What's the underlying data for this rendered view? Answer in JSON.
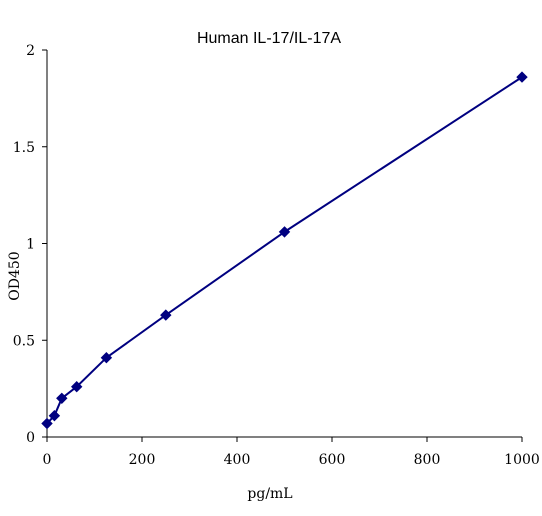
{
  "chart_data": {
    "type": "line",
    "title": "Human IL-17/IL-17A",
    "xlabel": "pg/mL",
    "ylabel": "OD450",
    "xlim": [
      0,
      1000
    ],
    "ylim": [
      0,
      2
    ],
    "x_ticks": [
      "0",
      "200",
      "400",
      "600",
      "800",
      "1000"
    ],
    "y_ticks": [
      "0",
      "0.5",
      "1",
      "1.5",
      "2"
    ],
    "grid": false,
    "legend": "none",
    "marker": "diamond",
    "line_color": "#000080",
    "series": [
      {
        "x": [
          0,
          15.6,
          31.25,
          62.5,
          125,
          250,
          500,
          1000
        ],
        "y": [
          0.07,
          0.11,
          0.2,
          0.26,
          0.41,
          0.63,
          1.06,
          1.86
        ]
      }
    ]
  }
}
